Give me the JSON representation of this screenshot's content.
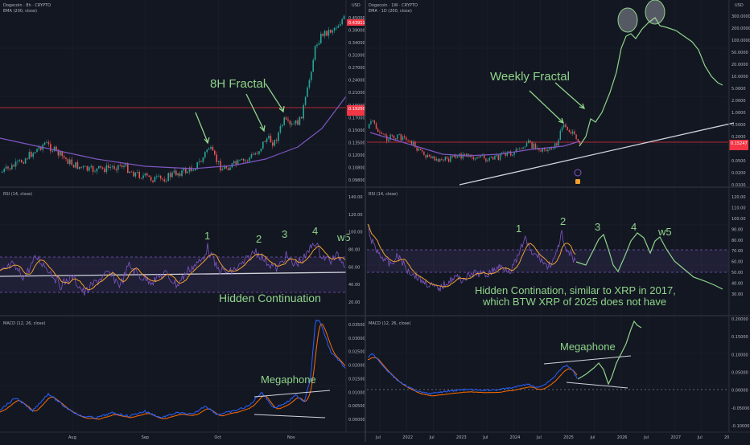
{
  "colors": {
    "bg": "#131722",
    "grid": "#1e222d",
    "axis_text": "#b2b5be",
    "divider": "#2a2e39",
    "candle_up": "#26a69a",
    "candle_down": "#ef5350",
    "ema": "#7e57c2",
    "rsi_line": "#7e57c2",
    "rsi_ma": "#f0a030",
    "rsi_band": "#7e57c2",
    "macd_line": "#2962ff",
    "macd_signal": "#ff6d00",
    "annotation": "#8fd48a",
    "white": "#d1d4dc",
    "price_tag": "#f23645",
    "red_level": "#b22833"
  },
  "left": {
    "header_title": "Dogecoin · 8h · CRYPTO",
    "header_ema": "EMA (200, close)",
    "currency": "USD",
    "price_tag": "0.43911",
    "level_tag": "0.19250",
    "annotation_fractal": "8H Fractal",
    "rsi_title": "RSI (14, close)",
    "rsi_wave_labels": [
      "1",
      "2",
      "3",
      "4",
      "w5"
    ],
    "annotation_rsi": "Hidden Continuation",
    "macd_title": "MACD (12, 26, close)",
    "annotation_megaphone": "Megaphone",
    "x_ticks": [
      "Aug",
      "Sep",
      "Oct",
      "Nov"
    ],
    "price_ticks": [
      "0.45000",
      "0.39000",
      "0.34000",
      "0.31000",
      "0.27000",
      "0.24000",
      "0.21000",
      "0.19000",
      "0.17000",
      "0.15000",
      "0.13500",
      "0.12000",
      "0.10800",
      "0.09800"
    ],
    "rsi_ticks": [
      "140.00",
      "120.00",
      "100.00",
      "80.00",
      "60.00",
      "40.00",
      "20.00"
    ],
    "macd_ticks": [
      "0.03500",
      "0.03000",
      "0.02500",
      "0.02000",
      "0.01500",
      "0.01000",
      "0.00500",
      "0.00000"
    ]
  },
  "right": {
    "header_title": "Dogecoin · 1W · CRYPTO",
    "header_ema": "EMA · 1D (200, close)",
    "currency": "USD",
    "price_tag": "0.15247",
    "annotation_fractal": "Weekly Fractal",
    "rsi_title": "RSI (14, close)",
    "rsi_wave_labels": [
      "1",
      "2",
      "3",
      "4",
      "w5"
    ],
    "annotation_rsi_line1": "Hidden Contination, similar to XRP in 2017,",
    "annotation_rsi_line2": "which BTW XRP of 2025 does not have",
    "macd_title": "MACD (12, 26, close)",
    "annotation_megaphone": "Megaphone",
    "x_ticks": [
      "Jul",
      "2022",
      "Jul",
      "2023",
      "Jul",
      "2024",
      "Jul",
      "2025",
      "Jul",
      "2026",
      "Jul",
      "2027",
      "Jul",
      "20"
    ],
    "price_ticks": [
      "300.0000",
      "200.0000",
      "100.0000",
      "50.0000",
      "20.0000",
      "10.0000",
      "5.0000",
      "2.0000",
      "1.0000",
      "0.5000",
      "0.2000",
      "0.1000",
      "0.0500",
      "0.0200",
      "0.0100"
    ],
    "rsi_ticks": [
      "120.00",
      "110.00",
      "100.00",
      "90.00",
      "80.00",
      "70.00",
      "60.00",
      "50.00",
      "40.00",
      "30.00"
    ],
    "macd_ticks": [
      "0.20000",
      "0.15000",
      "0.10000",
      "0.05000",
      "0.00000",
      "-0.05000",
      "-0.10000"
    ]
  }
}
